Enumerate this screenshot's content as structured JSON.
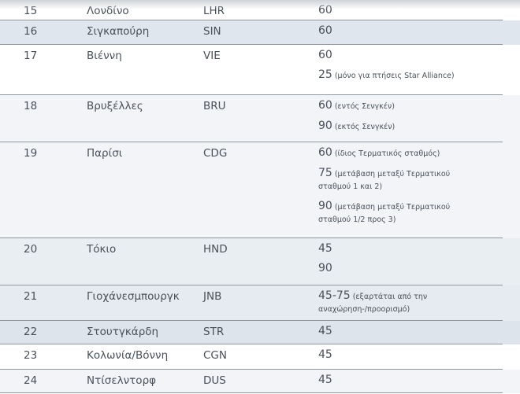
{
  "rows": [
    {
      "num": "15",
      "city": "Λονδίνο",
      "code": "LHR",
      "values": [
        {
          "time": "60",
          "note": ""
        }
      ]
    },
    {
      "num": "16",
      "city": "Σιγκαπούρη",
      "code": "SIN",
      "values": [
        {
          "time": "60",
          "note": ""
        }
      ]
    },
    {
      "num": "17",
      "city": "Βιέννη",
      "code": "VIE",
      "values": [
        {
          "time": "60",
          "note": ""
        },
        {
          "time": "25",
          "note": "(μόνο για πτήσεις Star Alliance)"
        }
      ]
    },
    {
      "num": "18",
      "city": "Βρυξέλλες",
      "code": "BRU",
      "values": [
        {
          "time": "60",
          "note": "(εντός Σενγκέν)"
        },
        {
          "time": "90",
          "note": "(εκτός Σενγκέν)"
        }
      ]
    },
    {
      "num": "19",
      "city": "Παρίσι",
      "code": "CDG",
      "values": [
        {
          "time": "60",
          "note": "(ίδιος Τερματικός σταθμός)"
        },
        {
          "time": "75",
          "note": "(μετάβαση μεταξύ Τερματικού σταθμού 1 και 2)"
        },
        {
          "time": "90",
          "note": "(μετάβαση μεταξύ Τερματικού σταθμού 1/2 προς 3)"
        }
      ]
    },
    {
      "num": "20",
      "city": "Τόκιο",
      "code": "HND",
      "values": [
        {
          "time": "45",
          "note": ""
        },
        {
          "time": "90",
          "note": ""
        }
      ]
    },
    {
      "num": "21",
      "city": "Γιοχάνεσμπουργκ",
      "code": "JNB",
      "values": [
        {
          "time": "45-75",
          "note": "(εξαρτάται από την αναχώρηση-/προορισμό)"
        }
      ]
    },
    {
      "num": "22",
      "city": "Στουτγκάρδη",
      "code": "STR",
      "values": [
        {
          "time": "45",
          "note": ""
        }
      ]
    },
    {
      "num": "23",
      "city": "Κολωνία/Βόννη",
      "code": "CGN",
      "values": [
        {
          "time": "45",
          "note": ""
        }
      ]
    },
    {
      "num": "24",
      "city": "Ντίσελντορφ",
      "code": "DUS",
      "values": [
        {
          "time": "45",
          "note": ""
        }
      ]
    }
  ],
  "colors": {
    "stripe": "#dfe6ee",
    "light": "#f1f3f6",
    "text": "#4a505a",
    "divider": "#8e959e"
  }
}
